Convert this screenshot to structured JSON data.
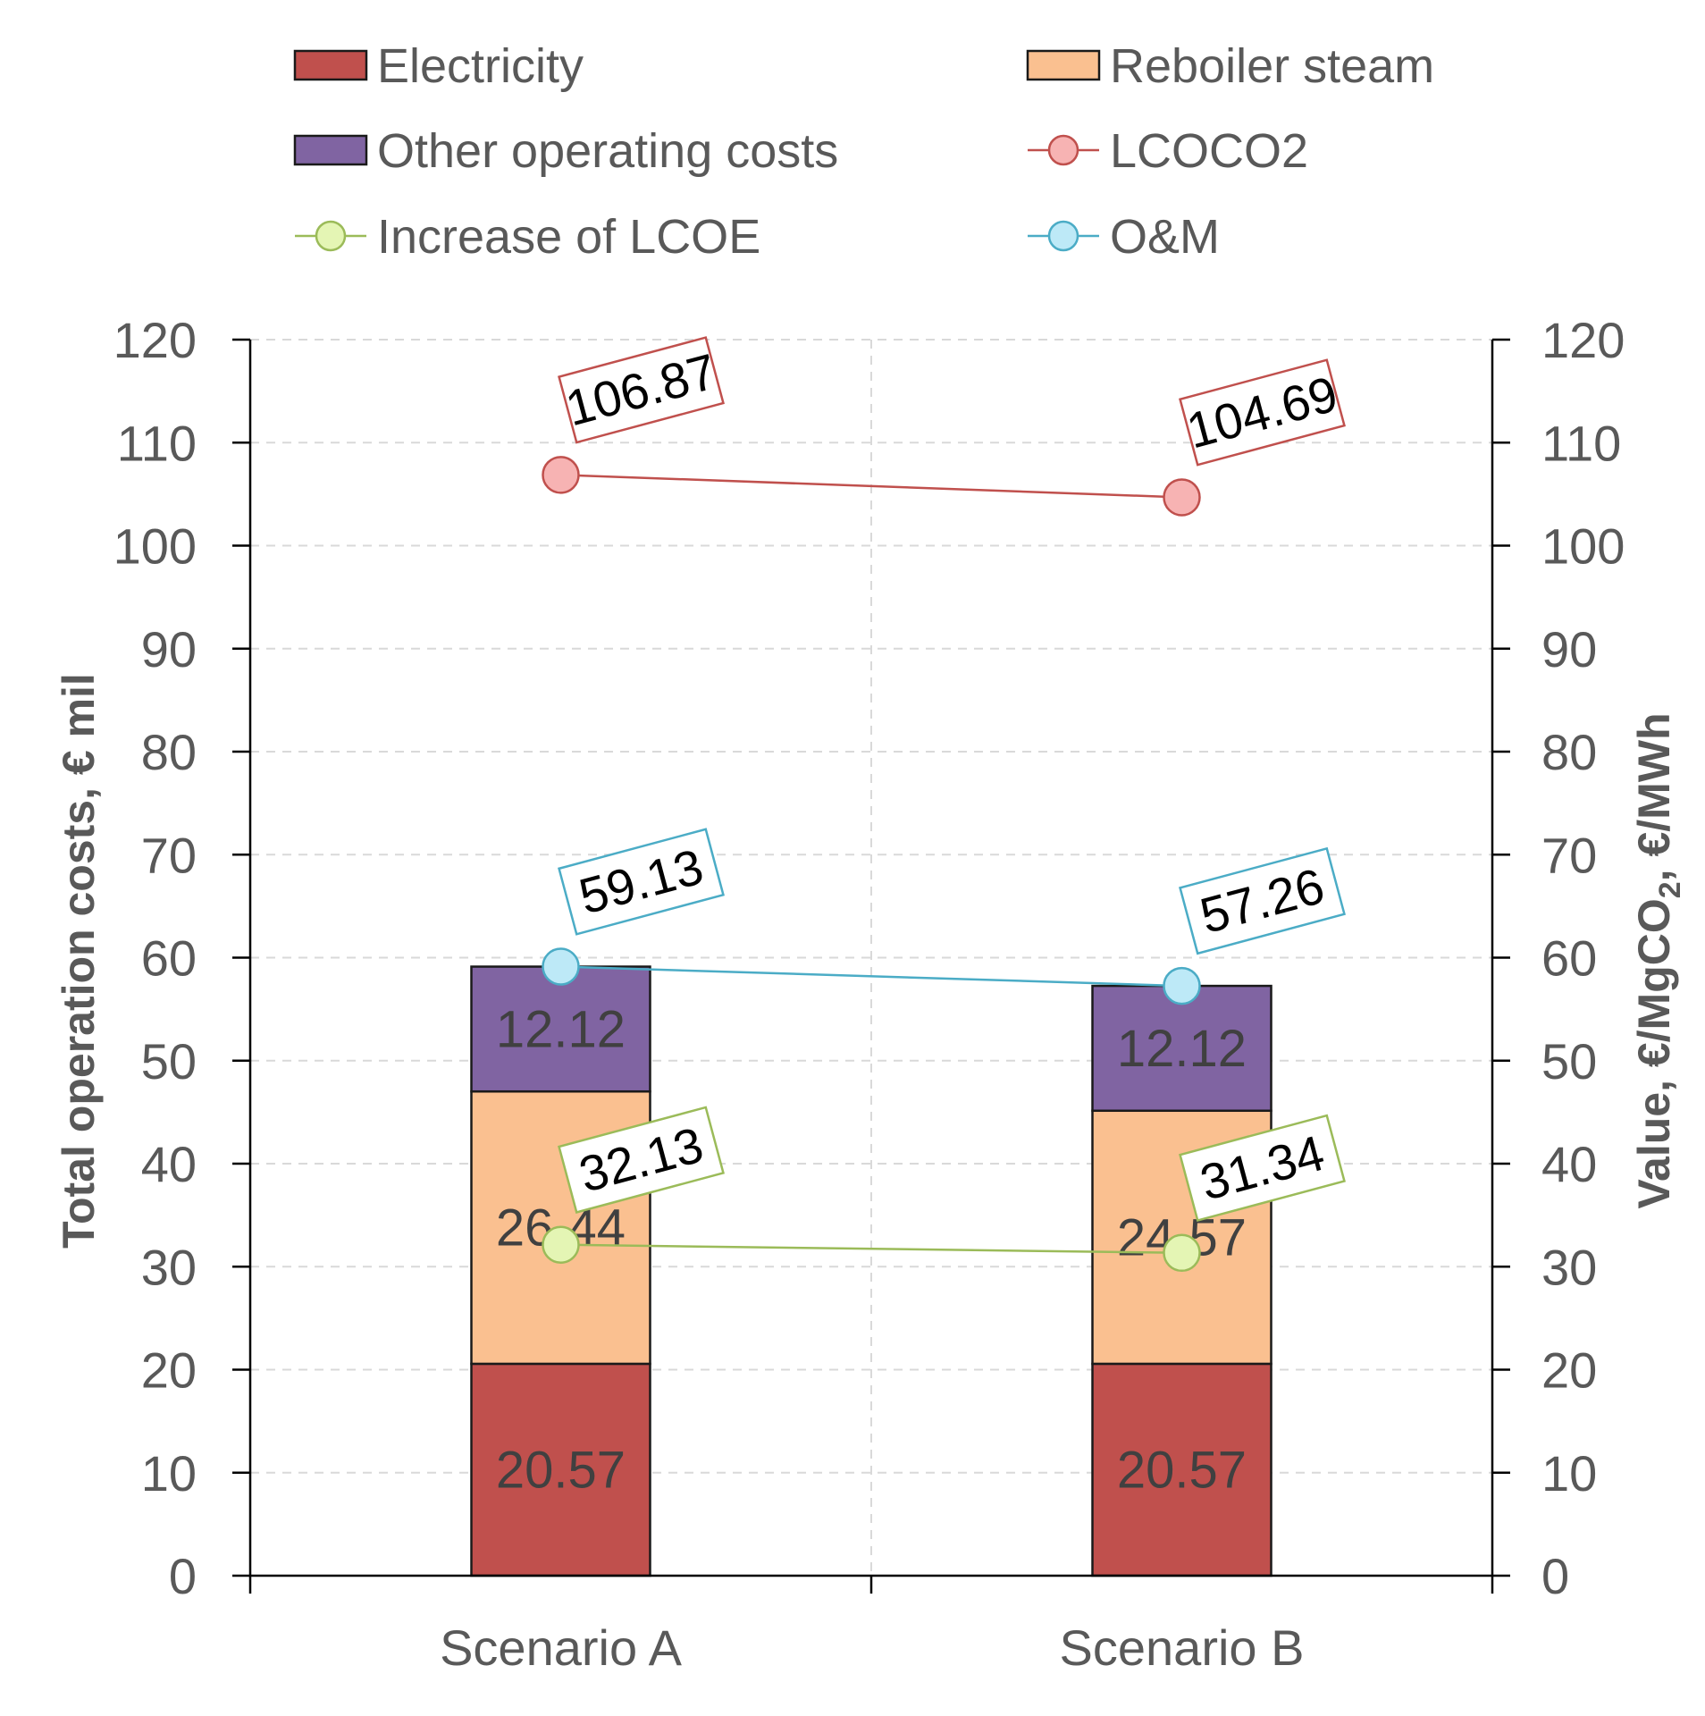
{
  "chart_data": {
    "type": "bar",
    "stacked": true,
    "categories": [
      "Scenario A",
      "Scenario B"
    ],
    "series": [
      {
        "name": "Electricity",
        "kind": "bar",
        "values": [
          20.57,
          20.57
        ],
        "color": "#c0504d",
        "labels": [
          "20.57",
          "20.57"
        ]
      },
      {
        "name": "Reboiler steam",
        "kind": "bar",
        "values": [
          26.44,
          24.57
        ],
        "color": "#fac090",
        "labels": [
          "26.44",
          "24.57"
        ]
      },
      {
        "name": "Other operating costs",
        "kind": "bar",
        "values": [
          12.12,
          12.12
        ],
        "color": "#8064a2",
        "labels": [
          "12.12",
          "12.12"
        ]
      },
      {
        "name": "LCOCO2",
        "kind": "line",
        "values": [
          106.87,
          104.69
        ],
        "color": "#c0504d",
        "marker_fill": "#f7b3b3",
        "labels": [
          "106.87",
          "104.69"
        ]
      },
      {
        "name": "Increase of LCOE",
        "kind": "line",
        "values": [
          32.13,
          31.34
        ],
        "color": "#9bbb59",
        "marker_fill": "#e4f5b4",
        "labels": [
          "32.13",
          "31.34"
        ]
      },
      {
        "name": "O&M",
        "kind": "line",
        "values": [
          59.13,
          57.26
        ],
        "color": "#4bacc6",
        "marker_fill": "#bde9f7",
        "labels": [
          "59.13",
          "57.26"
        ]
      }
    ],
    "ylabel": "Total operation costs, € mil",
    "y2label_parts": [
      "Value, €/MgCO",
      "2",
      ", €/MWh"
    ],
    "ylim": [
      0,
      120
    ],
    "y2lim": [
      0,
      120
    ],
    "yticks": [
      "0",
      "10",
      "20",
      "30",
      "40",
      "50",
      "60",
      "70",
      "80",
      "90",
      "100",
      "110",
      "120"
    ],
    "grid": true,
    "legend_position": "top",
    "legend_order": [
      "Electricity",
      "Reboiler steam",
      "Other operating costs",
      "LCOCO2",
      "Increase of LCOE",
      "O&M"
    ]
  }
}
